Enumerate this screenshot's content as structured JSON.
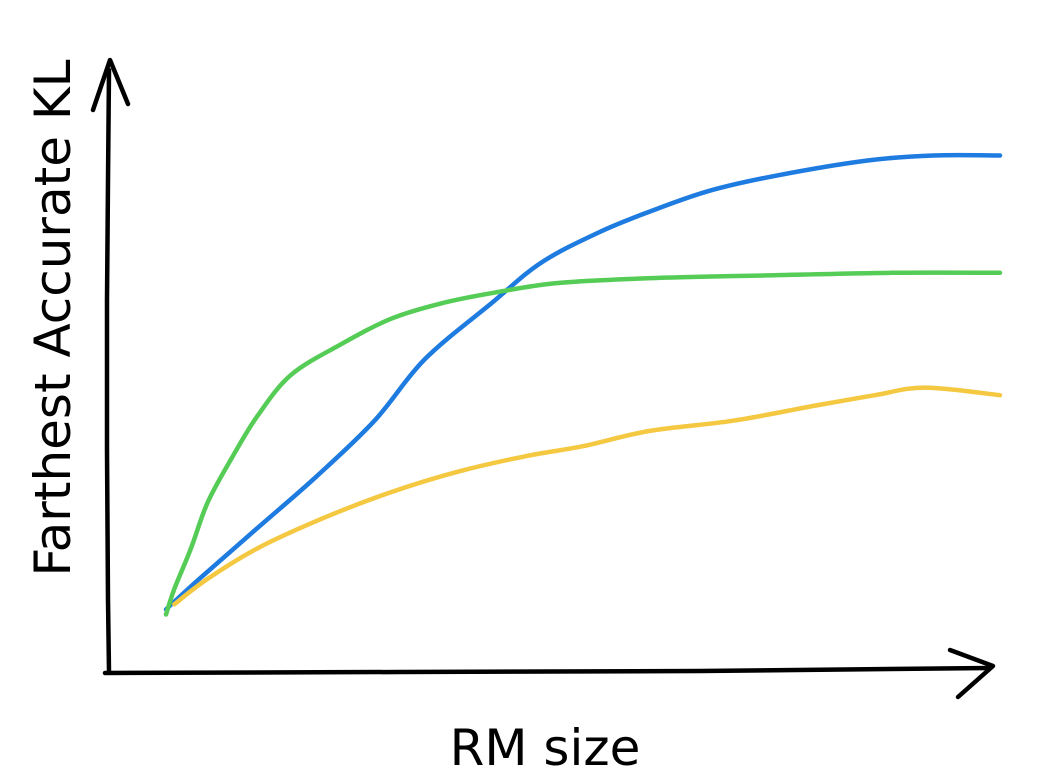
{
  "chart_data": {
    "type": "line",
    "title": "",
    "xlabel": "RM size",
    "ylabel": "Farthest Accurate KL",
    "xlim": [
      0,
      100
    ],
    "ylim": [
      0,
      100
    ],
    "grid": false,
    "legend": "none",
    "series": [
      {
        "color": "#1e7be0",
        "x": [
          0,
          4,
          11,
          18,
          25,
          31,
          39,
          45,
          52,
          58,
          65,
          73,
          84,
          92,
          100
        ],
        "y": [
          6,
          12,
          22,
          32,
          43,
          55,
          66,
          74,
          80,
          84,
          88,
          91,
          94,
          95,
          95
        ]
      },
      {
        "color": "#55cc55",
        "x": [
          0,
          1,
          3,
          5,
          8,
          11,
          15,
          21,
          27,
          33,
          39,
          47,
          59,
          72,
          87,
          100
        ],
        "y": [
          5,
          10,
          18,
          27,
          36,
          44,
          52,
          58,
          63,
          66,
          68,
          70,
          71,
          71.5,
          72,
          72
        ]
      },
      {
        "color": "#f5c842",
        "x": [
          1,
          5,
          11,
          19,
          27,
          35,
          43,
          50,
          58,
          68,
          78,
          85,
          91,
          100
        ],
        "y": [
          7,
          12,
          18,
          24,
          29,
          33,
          36,
          38,
          41,
          43,
          46,
          48,
          49.5,
          48
        ]
      }
    ]
  }
}
